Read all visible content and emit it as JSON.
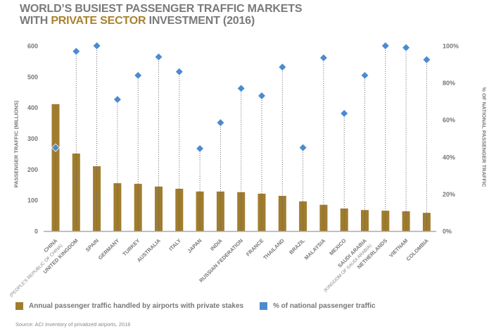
{
  "title": {
    "line1": "WORLD’S BUSIEST PASSENGER TRAFFIC MARKETS",
    "line2_prefix": "WITH ",
    "line2_accent": "PRIVATE SECTOR",
    "line2_suffix": " INVESTMENT (2016)"
  },
  "colors": {
    "bar": "#A07C2E",
    "marker": "#4A8BD0",
    "axis": "#aaaaaa",
    "text": "#777777"
  },
  "legend": {
    "bars": "Annual passenger traffic handled by airports with private stakes",
    "markers": "% of national passenger traffic"
  },
  "source": "Source: ACI Inventory of privatized airports, 2016",
  "chart_data": {
    "type": "bar",
    "title": "WORLD’S BUSIEST PASSENGER TRAFFIC MARKETS WITH PRIVATE SECTOR INVESTMENT (2016)",
    "xlabel": "",
    "ylabel": "PASSENGER TRAFFIC (MILLIONS)",
    "ylabel_right": "% OF NATIONAL PASSENGER TRAFFIC",
    "ylim": [
      0,
      600
    ],
    "ylim_right": [
      0,
      100
    ],
    "yticks": [
      "0",
      "100",
      "200",
      "300",
      "400",
      "500",
      "600"
    ],
    "yticks_right": [
      "0%",
      "20%",
      "40%",
      "60%",
      "80%",
      "100%"
    ],
    "legend_position": "bottom",
    "grid": false,
    "categories": [
      "CHINA",
      "UNITED KINGDOM",
      "SPAIN",
      "GERMANY",
      "TURKEY",
      "AUSTRALIA",
      "ITALY",
      "JAPAN",
      "INDIA",
      "RUSSIAN FEDERATION",
      "FRANCE",
      "THAILAND",
      "BRAZIL",
      "MALAYSIA",
      "MEXICO",
      "SAUDI ARABIA",
      "NETHERLANDS",
      "VIETNAM",
      "COLOMBIA"
    ],
    "category_sublabels": {
      "CHINA": "(PEOPLE'S REPUBLIC OF CHINA)",
      "SAUDI ARABIA": "(KINGDOM OF SAUDI ARABIA)"
    },
    "series": [
      {
        "name": "Annual passenger traffic handled by airports with private stakes",
        "type": "bar",
        "axis": "left",
        "values": [
          411,
          251,
          210,
          155,
          153,
          144,
          137,
          128,
          128,
          126,
          121,
          114,
          96,
          85,
          73,
          68,
          66,
          64,
          59
        ]
      },
      {
        "name": "% of national passenger traffic",
        "type": "scatter",
        "axis": "right",
        "values": [
          45,
          97,
          100,
          71,
          84,
          94,
          86,
          44.5,
          58.5,
          77,
          73,
          88.5,
          45,
          93.5,
          63.5,
          84,
          100,
          99,
          92.5
        ]
      }
    ]
  }
}
